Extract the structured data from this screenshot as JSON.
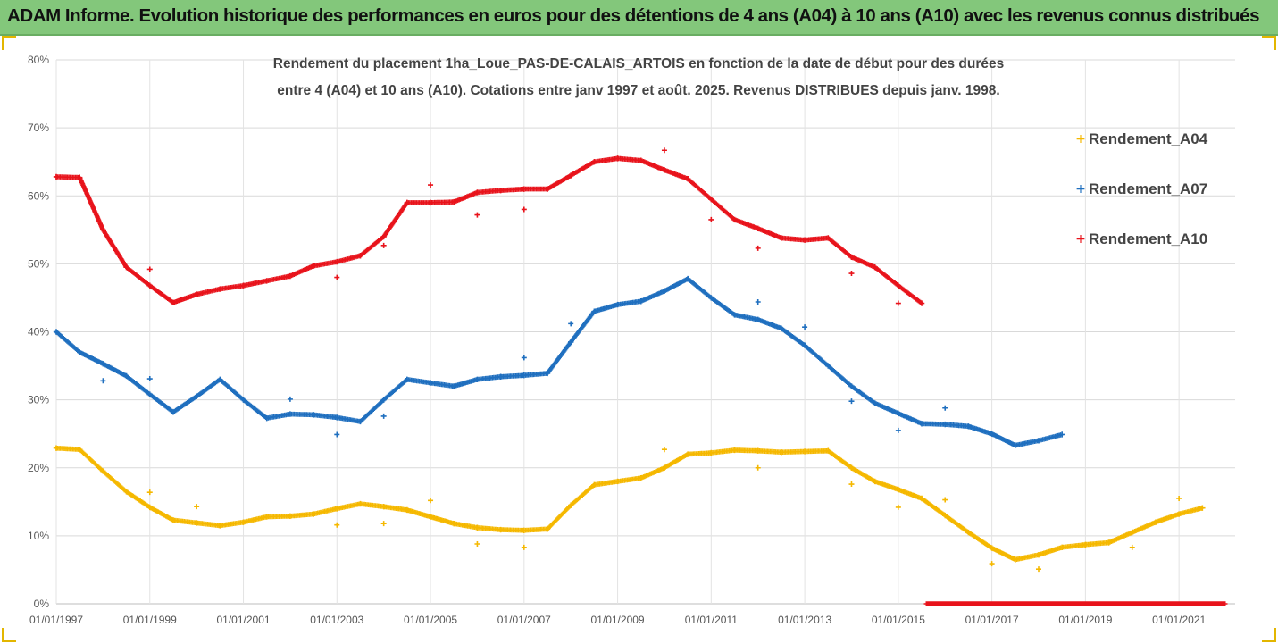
{
  "header": {
    "title": "ADAM Informe. Evolution historique des performances en euros pour des détentions de 4 ans (A04) à 10 ans (A10) avec les revenus connus distribués"
  },
  "colors": {
    "header_bg": "#83c77b",
    "A04": "#f5b800",
    "A07": "#1f6fbf",
    "A10": "#e8131b"
  },
  "chart_data": {
    "type": "scatter",
    "title": "",
    "subtitle_lines": [
      "Rendement du placement 1ha_Loue_PAS-DE-CALAIS_ARTOIS en fonction de la date de début pour des durées",
      "entre 4 (A04) et 10 ans (A10). Cotations entre janv 1997 et août. 2025. Revenus DISTRIBUES depuis janv. 1998."
    ],
    "xlabel": "",
    "ylabel": "",
    "x_tick_labels": [
      "01/01/1997",
      "01/01/1999",
      "01/01/2001",
      "01/01/2003",
      "01/01/2005",
      "01/01/2007",
      "01/01/2009",
      "01/01/2011",
      "01/01/2013",
      "01/01/2015",
      "01/01/2017",
      "01/01/2019",
      "01/01/2021"
    ],
    "x_ticks": [
      1997,
      1999,
      2001,
      2003,
      2005,
      2007,
      2009,
      2011,
      2013,
      2015,
      2017,
      2019,
      2021
    ],
    "xlim": [
      1997,
      2022.2
    ],
    "y_tick_labels": [
      "0%",
      "10%",
      "20%",
      "30%",
      "40%",
      "50%",
      "60%",
      "70%",
      "80%"
    ],
    "y_ticks": [
      0,
      10,
      20,
      30,
      40,
      50,
      60,
      70,
      80
    ],
    "ylim": [
      0,
      80
    ],
    "grid": "horizontal",
    "legend_position": "right",
    "marker": "+",
    "series": [
      {
        "name": "Rendement_A04",
        "key": "A04",
        "x": [
          1997.0,
          1997.5,
          1998.0,
          1998.5,
          1999.0,
          1999.5,
          2000.0,
          2000.5,
          2001.0,
          2001.5,
          2002.0,
          2002.5,
          2003.0,
          2003.5,
          2004.0,
          2004.5,
          2005.0,
          2005.5,
          2006.0,
          2006.5,
          2007.0,
          2007.5,
          2008.0,
          2008.5,
          2009.0,
          2009.5,
          2010.0,
          2010.5,
          2011.0,
          2011.5,
          2012.0,
          2012.5,
          2013.0,
          2013.5,
          2014.0,
          2014.5,
          2015.0,
          2015.5,
          2016.0,
          2016.5,
          2017.0,
          2017.5,
          2018.0,
          2018.5,
          2019.0,
          2019.5,
          2020.0,
          2020.5,
          2021.0,
          2021.5
        ],
        "y": [
          22.9,
          22.7,
          19.5,
          16.5,
          14.2,
          12.3,
          11.9,
          11.5,
          12.0,
          12.8,
          12.9,
          13.2,
          14.0,
          14.7,
          14.3,
          13.8,
          12.8,
          11.8,
          11.2,
          10.9,
          10.8,
          11.0,
          14.5,
          17.5,
          18.0,
          18.5,
          20.0,
          22.0,
          22.2,
          22.6,
          22.5,
          22.3,
          22.4,
          22.5,
          20.0,
          18.0,
          16.8,
          15.5,
          13.0,
          10.5,
          8.2,
          6.5,
          7.2,
          8.3,
          8.7,
          9.0,
          10.5,
          12.0,
          13.2,
          14.1
        ],
        "outliers": [
          [
            1999.0,
            16.4
          ],
          [
            2000.0,
            14.3
          ],
          [
            2003.0,
            11.6
          ],
          [
            2004.0,
            11.8
          ],
          [
            2005.0,
            15.2
          ],
          [
            2006.0,
            8.8
          ],
          [
            2007.0,
            8.3
          ],
          [
            2010.0,
            22.7
          ],
          [
            2012.0,
            20.0
          ],
          [
            2014.0,
            17.6
          ],
          [
            2015.0,
            14.2
          ],
          [
            2016.0,
            15.3
          ],
          [
            2017.0,
            5.9
          ],
          [
            2018.0,
            5.1
          ],
          [
            2020.0,
            8.3
          ],
          [
            2021.0,
            15.5
          ]
        ]
      },
      {
        "name": "Rendement_A07",
        "key": "A07",
        "x": [
          1997.0,
          1997.5,
          1998.0,
          1998.5,
          1999.0,
          1999.5,
          2000.0,
          2000.5,
          2001.0,
          2001.5,
          2002.0,
          2002.5,
          2003.0,
          2003.5,
          2004.0,
          2004.5,
          2005.0,
          2005.5,
          2006.0,
          2006.5,
          2007.0,
          2007.5,
          2008.0,
          2008.5,
          2009.0,
          2009.5,
          2010.0,
          2010.5,
          2011.0,
          2011.5,
          2012.0,
          2012.5,
          2013.0,
          2013.5,
          2014.0,
          2014.5,
          2015.0,
          2015.5,
          2016.0,
          2016.5,
          2017.0,
          2017.5,
          2018.0,
          2018.5
        ],
        "y": [
          40.0,
          37.0,
          35.3,
          33.5,
          30.8,
          28.2,
          30.5,
          33.0,
          30.0,
          27.3,
          27.9,
          27.8,
          27.4,
          26.8,
          30.0,
          33.0,
          32.5,
          32.0,
          33.0,
          33.4,
          33.6,
          33.9,
          38.5,
          43.0,
          44.0,
          44.5,
          46.0,
          47.8,
          45.0,
          42.5,
          41.8,
          40.5,
          38.0,
          35.0,
          32.0,
          29.5,
          28.0,
          26.5,
          26.4,
          26.1,
          25.0,
          23.3,
          24.0,
          24.9
        ],
        "outliers": [
          [
            1998.0,
            32.8
          ],
          [
            1999.0,
            33.1
          ],
          [
            2002.0,
            30.1
          ],
          [
            2003.0,
            24.9
          ],
          [
            2004.0,
            27.6
          ],
          [
            2007.0,
            36.2
          ],
          [
            2008.0,
            41.2
          ],
          [
            2012.0,
            44.4
          ],
          [
            2013.0,
            40.7
          ],
          [
            2014.0,
            29.8
          ],
          [
            2015.0,
            25.5
          ],
          [
            2016.0,
            28.8
          ]
        ]
      },
      {
        "name": "Rendement_A10",
        "key": "A10",
        "x": [
          1997.0,
          1997.5,
          1998.0,
          1998.5,
          1999.0,
          1999.5,
          2000.0,
          2000.5,
          2001.0,
          2001.5,
          2002.0,
          2002.5,
          2003.0,
          2003.5,
          2004.0,
          2004.5,
          2005.0,
          2005.5,
          2006.0,
          2006.5,
          2007.0,
          2007.5,
          2008.0,
          2008.5,
          2009.0,
          2009.5,
          2010.0,
          2010.5,
          2011.0,
          2011.5,
          2012.0,
          2012.5,
          2013.0,
          2013.5,
          2014.0,
          2014.5,
          2015.0,
          2015.5
        ],
        "y": [
          62.8,
          62.7,
          55.0,
          49.5,
          46.8,
          44.3,
          45.5,
          46.3,
          46.8,
          47.5,
          48.2,
          49.7,
          50.3,
          51.2,
          54.0,
          59.0,
          59.0,
          59.1,
          60.5,
          60.8,
          61.0,
          61.0,
          63.0,
          65.0,
          65.5,
          65.2,
          63.8,
          62.5,
          59.5,
          56.5,
          55.2,
          53.8,
          53.5,
          53.8,
          51.0,
          49.5,
          46.8,
          44.2
        ],
        "outliers": [
          [
            1999.0,
            49.2
          ],
          [
            2003.0,
            48.0
          ],
          [
            2004.0,
            52.7
          ],
          [
            2005.0,
            61.6
          ],
          [
            2006.0,
            57.2
          ],
          [
            2007.0,
            58.0
          ],
          [
            2010.0,
            66.7
          ],
          [
            2011.0,
            56.5
          ],
          [
            2012.0,
            52.3
          ],
          [
            2014.0,
            48.6
          ],
          [
            2015.0,
            44.2
          ]
        ],
        "zero_band": [
          2015.6,
          2022.0
        ]
      }
    ]
  }
}
